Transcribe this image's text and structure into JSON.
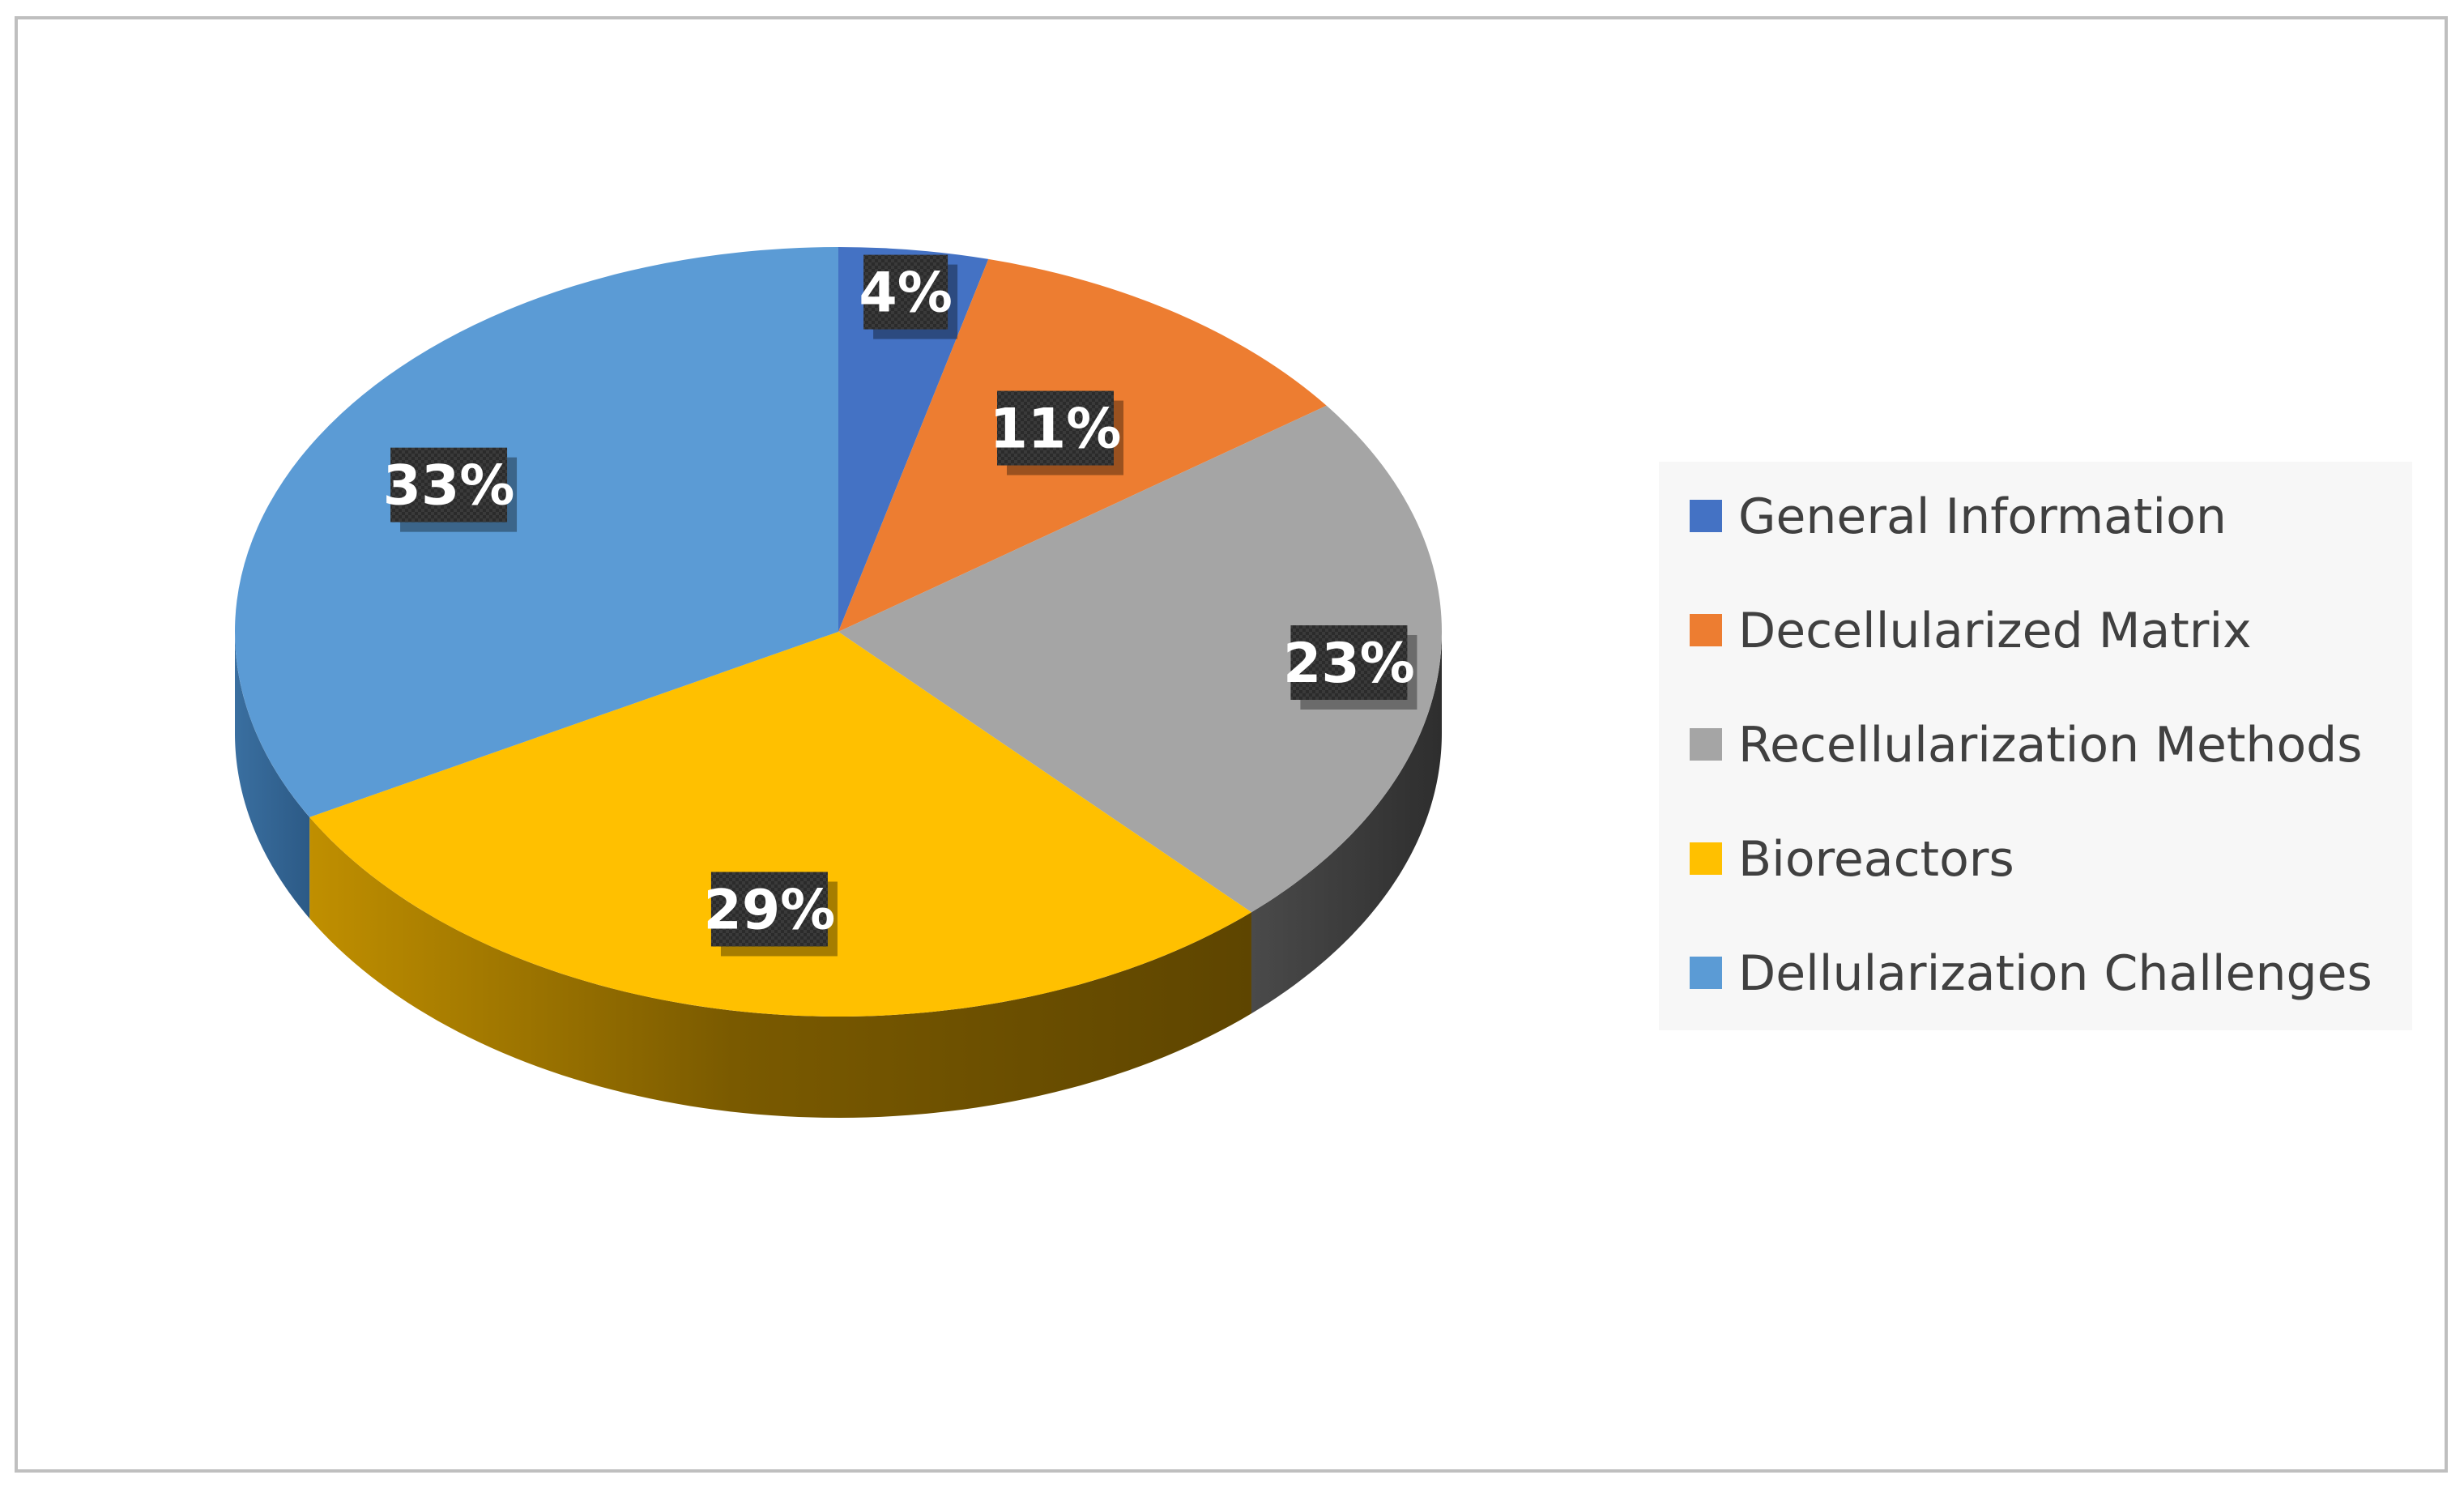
{
  "chart_data": {
    "type": "pie",
    "style": "3d",
    "title": "",
    "categories": [
      "General Information",
      "Decellularized Matrix",
      "Recellularization Methods",
      "Bioreactors",
      "Dellularization Challenges"
    ],
    "values": [
      4,
      11,
      23,
      29,
      33
    ],
    "labels": [
      "4%",
      "11%",
      "23%",
      "29%",
      "33%"
    ],
    "colors": [
      "#4472C4",
      "#ED7D31",
      "#A5A5A5",
      "#FFC000",
      "#5B9BD5"
    ],
    "legend_position": "right"
  }
}
